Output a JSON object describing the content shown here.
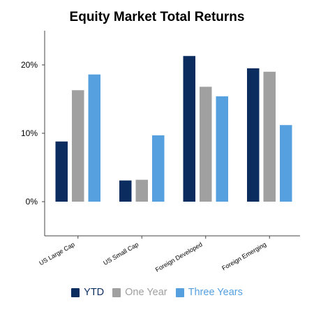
{
  "chart_data": {
    "type": "bar",
    "title": "Equity Market Total Returns",
    "xlabel": "",
    "ylabel": "",
    "categories": [
      "US Large Cap",
      "US Small Cap",
      "Foreign Developed",
      "Foreign Emerging"
    ],
    "series": [
      {
        "name": "YTD",
        "color": "#0b2c5f",
        "values": [
          8.8,
          3.1,
          21.3,
          19.5
        ]
      },
      {
        "name": "One Year",
        "color": "#a0a0a0",
        "values": [
          16.3,
          3.2,
          16.8,
          19.0
        ]
      },
      {
        "name": "Three Years",
        "color": "#56a0e0",
        "values": [
          18.6,
          9.7,
          15.4,
          11.2
        ]
      }
    ],
    "ylim": [
      -5,
      25
    ],
    "yticks": [
      0,
      10,
      20
    ],
    "ytick_labels": [
      "0%",
      "10%",
      "20%"
    ],
    "grid": false,
    "legend_position": "bottom"
  }
}
